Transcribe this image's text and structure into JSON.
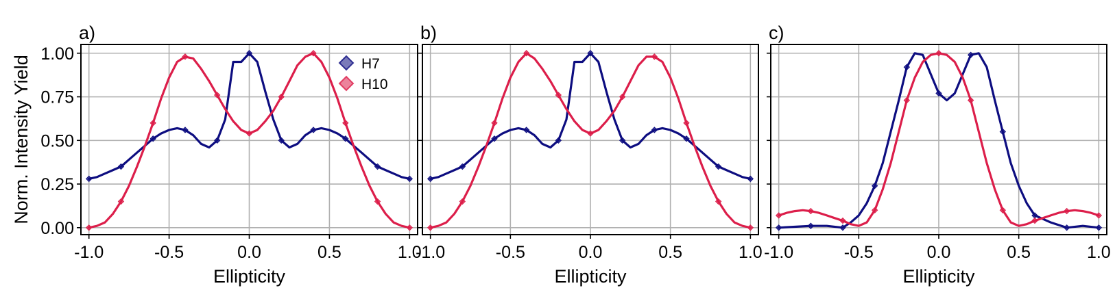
{
  "chart_data": [
    {
      "panel_label": "a)",
      "type": "line",
      "xlabel": "Ellipticity",
      "ylabel": "Norm. Intensity Yield",
      "xlim": [
        -1.05,
        1.05
      ],
      "ylim": [
        -0.04,
        1.05
      ],
      "xticks": [
        -1.0,
        -0.5,
        0.0,
        0.5,
        1.0
      ],
      "xtick_labels": [
        "-1.0",
        "-0.5",
        "0.0",
        "0.5",
        "1.0"
      ],
      "yticks": [
        0.0,
        0.25,
        0.5,
        0.75,
        1.0
      ],
      "ytick_labels": [
        "0.00",
        "0.25",
        "0.50",
        "0.75",
        "1.00"
      ],
      "grid": true,
      "legend": {
        "placement": "top-right",
        "entries": [
          "H7",
          "H10"
        ]
      },
      "series": [
        {
          "name": "H7",
          "color": "#0d0d80",
          "x": [
            -1.0,
            -0.95,
            -0.9,
            -0.85,
            -0.8,
            -0.75,
            -0.7,
            -0.65,
            -0.6,
            -0.55,
            -0.5,
            -0.45,
            -0.4,
            -0.35,
            -0.3,
            -0.25,
            -0.2,
            -0.15,
            -0.1,
            -0.05,
            0.0,
            0.05,
            0.1,
            0.15,
            0.2,
            0.25,
            0.3,
            0.35,
            0.4,
            0.45,
            0.5,
            0.55,
            0.6,
            0.65,
            0.7,
            0.75,
            0.8,
            0.85,
            0.9,
            0.95,
            1.0
          ],
          "y": [
            0.28,
            0.29,
            0.31,
            0.33,
            0.35,
            0.39,
            0.43,
            0.47,
            0.51,
            0.54,
            0.56,
            0.57,
            0.56,
            0.53,
            0.48,
            0.46,
            0.5,
            0.62,
            0.95,
            0.95,
            1.0,
            0.95,
            0.78,
            0.62,
            0.5,
            0.46,
            0.48,
            0.53,
            0.56,
            0.57,
            0.56,
            0.54,
            0.51,
            0.47,
            0.43,
            0.39,
            0.35,
            0.33,
            0.31,
            0.29,
            0.28
          ],
          "markers_x": [
            -1.0,
            -0.8,
            -0.6,
            -0.4,
            -0.2,
            0.0,
            0.2,
            0.4,
            0.6,
            0.8,
            1.0
          ]
        },
        {
          "name": "H10",
          "color": "#dc1e4a",
          "x": [
            -1.0,
            -0.95,
            -0.9,
            -0.85,
            -0.8,
            -0.75,
            -0.7,
            -0.65,
            -0.6,
            -0.55,
            -0.5,
            -0.45,
            -0.4,
            -0.35,
            -0.3,
            -0.25,
            -0.2,
            -0.15,
            -0.1,
            -0.05,
            0.0,
            0.05,
            0.1,
            0.15,
            0.2,
            0.25,
            0.3,
            0.35,
            0.4,
            0.45,
            0.5,
            0.55,
            0.6,
            0.65,
            0.7,
            0.75,
            0.8,
            0.85,
            0.9,
            0.95,
            1.0
          ],
          "y": [
            0.0,
            0.01,
            0.03,
            0.08,
            0.15,
            0.24,
            0.35,
            0.47,
            0.6,
            0.74,
            0.86,
            0.95,
            0.98,
            0.97,
            0.91,
            0.84,
            0.76,
            0.68,
            0.61,
            0.56,
            0.54,
            0.56,
            0.61,
            0.67,
            0.75,
            0.84,
            0.93,
            0.98,
            1.0,
            0.95,
            0.86,
            0.74,
            0.6,
            0.47,
            0.35,
            0.24,
            0.15,
            0.08,
            0.03,
            0.01,
            0.0
          ],
          "markers_x": [
            -1.0,
            -0.8,
            -0.6,
            -0.4,
            -0.2,
            0.0,
            0.2,
            0.4,
            0.6,
            0.8,
            1.0
          ]
        }
      ]
    },
    {
      "panel_label": "b)",
      "type": "line",
      "xlabel": "Ellipticity",
      "ylabel": "",
      "xlim": [
        -1.05,
        1.05
      ],
      "ylim": [
        -0.04,
        1.05
      ],
      "xticks": [
        -1.0,
        -0.5,
        0.0,
        0.5,
        1.0
      ],
      "xtick_labels": [
        "-1.0",
        "-0.5",
        "0.0",
        "0.5",
        "1.0"
      ],
      "yticks": [
        0.0,
        0.25,
        0.5,
        0.75,
        1.0
      ],
      "ytick_labels": [],
      "grid": true,
      "series": [
        {
          "name": "H7",
          "color": "#0d0d80",
          "x": [
            -1.0,
            -0.95,
            -0.9,
            -0.85,
            -0.8,
            -0.75,
            -0.7,
            -0.65,
            -0.6,
            -0.55,
            -0.5,
            -0.45,
            -0.4,
            -0.35,
            -0.3,
            -0.25,
            -0.2,
            -0.15,
            -0.1,
            -0.05,
            0.0,
            0.05,
            0.1,
            0.15,
            0.2,
            0.25,
            0.3,
            0.35,
            0.4,
            0.45,
            0.5,
            0.55,
            0.6,
            0.65,
            0.7,
            0.75,
            0.8,
            0.85,
            0.9,
            0.95,
            1.0
          ],
          "y": [
            0.28,
            0.29,
            0.31,
            0.33,
            0.35,
            0.39,
            0.43,
            0.47,
            0.51,
            0.54,
            0.56,
            0.57,
            0.56,
            0.53,
            0.48,
            0.46,
            0.5,
            0.62,
            0.95,
            0.95,
            1.0,
            0.95,
            0.78,
            0.62,
            0.5,
            0.46,
            0.48,
            0.53,
            0.56,
            0.57,
            0.56,
            0.54,
            0.51,
            0.47,
            0.43,
            0.39,
            0.35,
            0.33,
            0.31,
            0.29,
            0.28
          ],
          "markers_x": [
            -1.0,
            -0.8,
            -0.6,
            -0.4,
            -0.2,
            0.0,
            0.2,
            0.4,
            0.6,
            0.8,
            1.0
          ]
        },
        {
          "name": "H10",
          "color": "#dc1e4a",
          "x": [
            -1.0,
            -0.95,
            -0.9,
            -0.85,
            -0.8,
            -0.75,
            -0.7,
            -0.65,
            -0.6,
            -0.55,
            -0.5,
            -0.45,
            -0.4,
            -0.35,
            -0.3,
            -0.25,
            -0.2,
            -0.15,
            -0.1,
            -0.05,
            0.0,
            0.05,
            0.1,
            0.15,
            0.2,
            0.25,
            0.3,
            0.35,
            0.4,
            0.45,
            0.5,
            0.55,
            0.6,
            0.65,
            0.7,
            0.75,
            0.8,
            0.85,
            0.9,
            0.95,
            1.0
          ],
          "y": [
            0.0,
            0.01,
            0.03,
            0.08,
            0.15,
            0.24,
            0.35,
            0.47,
            0.6,
            0.74,
            0.86,
            0.95,
            1.0,
            0.97,
            0.91,
            0.84,
            0.76,
            0.68,
            0.61,
            0.56,
            0.54,
            0.56,
            0.61,
            0.67,
            0.75,
            0.84,
            0.93,
            0.98,
            0.98,
            0.95,
            0.86,
            0.74,
            0.6,
            0.47,
            0.35,
            0.24,
            0.15,
            0.08,
            0.03,
            0.01,
            0.0
          ],
          "markers_x": [
            -1.0,
            -0.8,
            -0.6,
            -0.4,
            -0.2,
            0.0,
            0.2,
            0.4,
            0.6,
            0.8,
            1.0
          ]
        }
      ]
    },
    {
      "panel_label": "c)",
      "type": "line",
      "xlabel": "Ellipticity",
      "ylabel": "",
      "xlim": [
        -1.05,
        1.05
      ],
      "ylim": [
        -0.04,
        1.05
      ],
      "xticks": [
        -1.0,
        -0.5,
        0.0,
        0.5,
        1.0
      ],
      "xtick_labels": [
        "-1.0",
        "-0.5",
        "0.0",
        "0.5",
        "1.0"
      ],
      "yticks": [
        0.0,
        0.25,
        0.5,
        0.75,
        1.0
      ],
      "ytick_labels": [],
      "grid": true,
      "series": [
        {
          "name": "H7",
          "color": "#0d0d80",
          "x": [
            -1.0,
            -0.9,
            -0.8,
            -0.7,
            -0.6,
            -0.55,
            -0.5,
            -0.45,
            -0.4,
            -0.35,
            -0.3,
            -0.25,
            -0.2,
            -0.15,
            -0.1,
            -0.05,
            0.0,
            0.05,
            0.1,
            0.15,
            0.2,
            0.25,
            0.3,
            0.35,
            0.4,
            0.45,
            0.5,
            0.55,
            0.6,
            0.7,
            0.8,
            0.9,
            1.0
          ],
          "y": [
            0.0,
            0.005,
            0.01,
            0.01,
            0.0,
            0.03,
            0.07,
            0.14,
            0.24,
            0.37,
            0.55,
            0.73,
            0.92,
            1.0,
            0.99,
            0.88,
            0.77,
            0.73,
            0.77,
            0.88,
            0.99,
            1.0,
            0.92,
            0.73,
            0.55,
            0.37,
            0.24,
            0.14,
            0.07,
            0.03,
            0.0,
            0.01,
            0.0
          ],
          "markers_x": [
            -1.0,
            -0.8,
            -0.6,
            -0.4,
            -0.2,
            0.0,
            0.2,
            0.4,
            0.6,
            0.8,
            1.0
          ]
        },
        {
          "name": "H10",
          "color": "#dc1e4a",
          "x": [
            -1.0,
            -0.95,
            -0.9,
            -0.85,
            -0.8,
            -0.75,
            -0.7,
            -0.65,
            -0.6,
            -0.55,
            -0.5,
            -0.45,
            -0.4,
            -0.35,
            -0.3,
            -0.25,
            -0.2,
            -0.15,
            -0.1,
            -0.05,
            0.0,
            0.05,
            0.1,
            0.15,
            0.2,
            0.25,
            0.3,
            0.35,
            0.4,
            0.45,
            0.5,
            0.55,
            0.6,
            0.65,
            0.7,
            0.75,
            0.8,
            0.85,
            0.9,
            0.95,
            1.0
          ],
          "y": [
            0.07,
            0.085,
            0.095,
            0.1,
            0.095,
            0.085,
            0.07,
            0.055,
            0.04,
            0.02,
            0.01,
            0.03,
            0.1,
            0.22,
            0.37,
            0.55,
            0.73,
            0.86,
            0.95,
            0.99,
            1.0,
            0.99,
            0.95,
            0.86,
            0.73,
            0.55,
            0.37,
            0.22,
            0.1,
            0.03,
            0.01,
            0.02,
            0.04,
            0.055,
            0.07,
            0.085,
            0.095,
            0.1,
            0.095,
            0.085,
            0.07
          ],
          "markers_x": [
            -1.0,
            -0.8,
            -0.6,
            -0.4,
            -0.2,
            0.0,
            0.2,
            0.4,
            0.6,
            0.8,
            1.0
          ]
        }
      ]
    }
  ]
}
